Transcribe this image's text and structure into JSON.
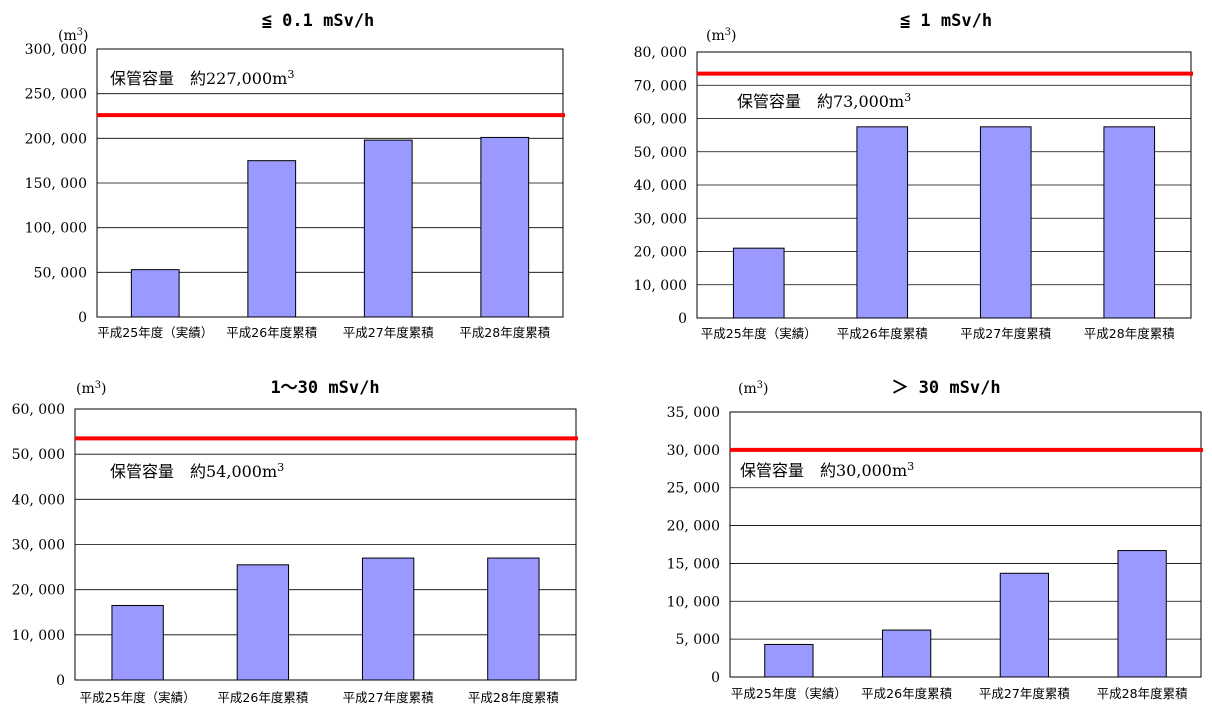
{
  "unit_label": "(m3)",
  "chart_data": [
    {
      "type": "bar",
      "title": "≦ 0.1 mSv/h",
      "ylabel": "(m3)",
      "categories": [
        "平成25年度（実績）",
        "平成26年度累積",
        "平成27年度累積",
        "平成28年度累積"
      ],
      "values": [
        53000,
        175000,
        198000,
        201000
      ],
      "ylim": [
        0,
        300000
      ],
      "ytick_step": 50000,
      "capacity": {
        "label": "保管容量　約227,000m3",
        "value": 226000,
        "color": "#ff0000"
      },
      "bar_color": "#9999ff",
      "grid": true
    },
    {
      "type": "bar",
      "title": "≦ 1 mSv/h",
      "ylabel": "(m3)",
      "categories": [
        "平成25年度（実績）",
        "平成26年度累積",
        "平成27年度累積",
        "平成28年度累積"
      ],
      "values": [
        21000,
        57500,
        57500,
        57500
      ],
      "ylim": [
        0,
        80000
      ],
      "ytick_step": 10000,
      "capacity": {
        "label": "保管容量　約73,000m3",
        "value": 73500,
        "color": "#ff0000"
      },
      "bar_color": "#9999ff",
      "grid": true
    },
    {
      "type": "bar",
      "title": "1～30 mSv/h",
      "ylabel": "(m3)",
      "categories": [
        "平成25年度（実績）",
        "平成26年度累積",
        "平成27年度累積",
        "平成28年度累積"
      ],
      "values": [
        16500,
        25500,
        27000,
        27000
      ],
      "ylim": [
        0,
        60000
      ],
      "ytick_step": 10000,
      "capacity": {
        "label": "保管容量　約54,000m3",
        "value": 53500,
        "color": "#ff0000"
      },
      "bar_color": "#9999ff",
      "grid": true
    },
    {
      "type": "bar",
      "title": "＞ 30 mSv/h",
      "ylabel": "(m3)",
      "categories": [
        "平成25年度（実績）",
        "平成26年度累積",
        "平成27年度累積",
        "平成28年度累積"
      ],
      "values": [
        4300,
        6200,
        13700,
        16700
      ],
      "ylim": [
        0,
        35000
      ],
      "ytick_step": 5000,
      "capacity": {
        "label": "保管容量　約30,000m3",
        "value": 30000,
        "color": "#ff0000"
      },
      "bar_color": "#9999ff",
      "grid": true
    }
  ]
}
